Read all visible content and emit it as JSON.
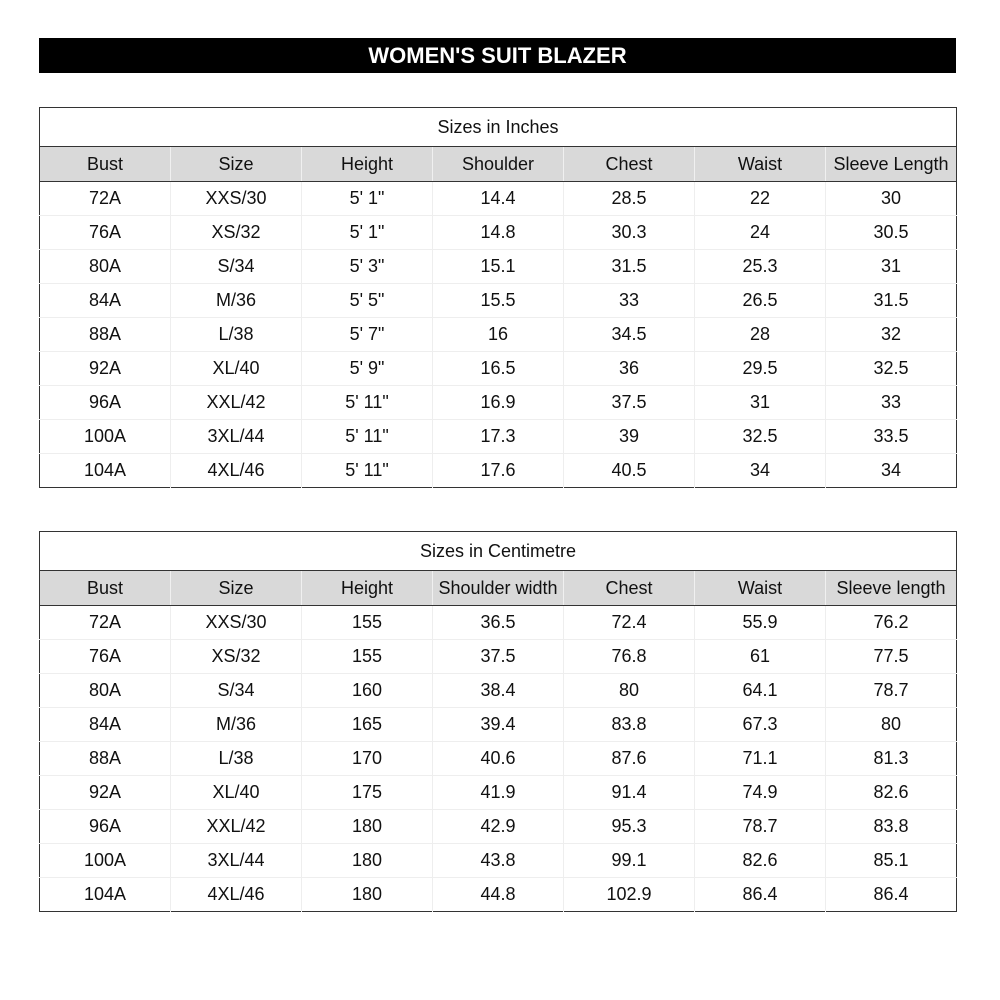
{
  "title": "WOMEN'S SUIT BLAZER",
  "tables": [
    {
      "caption": "Sizes in Inches",
      "headers": [
        "Bust",
        "Size",
        "Height",
        "Shoulder",
        "Chest",
        "Waist",
        "Sleeve Length"
      ],
      "rows": [
        [
          "72A",
          "XXS/30",
          "5' 1\"",
          "14.4",
          "28.5",
          "22",
          "30"
        ],
        [
          "76A",
          "XS/32",
          "5' 1\"",
          "14.8",
          "30.3",
          "24",
          "30.5"
        ],
        [
          "80A",
          "S/34",
          "5' 3\"",
          "15.1",
          "31.5",
          "25.3",
          "31"
        ],
        [
          "84A",
          "M/36",
          "5' 5\"",
          "15.5",
          "33",
          "26.5",
          "31.5"
        ],
        [
          "88A",
          "L/38",
          "5' 7\"",
          "16",
          "34.5",
          "28",
          "32"
        ],
        [
          "92A",
          "XL/40",
          "5' 9\"",
          "16.5",
          "36",
          "29.5",
          "32.5"
        ],
        [
          "96A",
          "XXL/42",
          "5' 11\"",
          "16.9",
          "37.5",
          "31",
          "33"
        ],
        [
          "100A",
          "3XL/44",
          "5' 11\"",
          "17.3",
          "39",
          "32.5",
          "33.5"
        ],
        [
          "104A",
          "4XL/46",
          "5' 11\"",
          "17.6",
          "40.5",
          "34",
          "34"
        ]
      ]
    },
    {
      "caption": "Sizes in Centimetre",
      "headers": [
        "Bust",
        "Size",
        "Height",
        "Shoulder width",
        "Chest",
        "Waist",
        "Sleeve length"
      ],
      "rows": [
        [
          "72A",
          "XXS/30",
          "155",
          "36.5",
          "72.4",
          "55.9",
          "76.2"
        ],
        [
          "76A",
          "XS/32",
          "155",
          "37.5",
          "76.8",
          "61",
          "77.5"
        ],
        [
          "80A",
          "S/34",
          "160",
          "38.4",
          "80",
          "64.1",
          "78.7"
        ],
        [
          "84A",
          "M/36",
          "165",
          "39.4",
          "83.8",
          "67.3",
          "80"
        ],
        [
          "88A",
          "L/38",
          "170",
          "40.6",
          "87.6",
          "71.1",
          "81.3"
        ],
        [
          "92A",
          "XL/40",
          "175",
          "41.9",
          "91.4",
          "74.9",
          "82.6"
        ],
        [
          "96A",
          "XXL/42",
          "180",
          "42.9",
          "95.3",
          "78.7",
          "83.8"
        ],
        [
          "100A",
          "3XL/44",
          "180",
          "43.8",
          "99.1",
          "82.6",
          "85.1"
        ],
        [
          "104A",
          "4XL/46",
          "180",
          "44.8",
          "102.9",
          "86.4",
          "86.4"
        ]
      ]
    }
  ]
}
